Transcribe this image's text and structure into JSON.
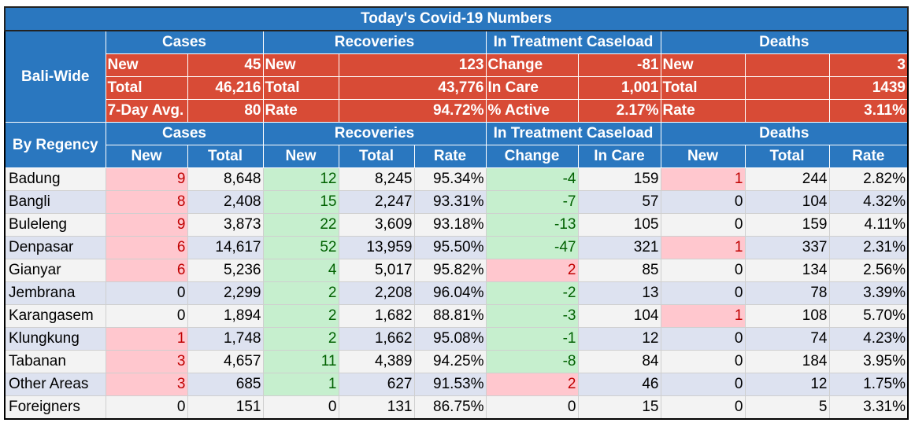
{
  "title": "Today's Covid-19 Numbers",
  "bali_wide": {
    "label": "Bali-Wide",
    "groups": [
      "Cases",
      "Recoveries",
      "In Treatment Caseload",
      "Deaths"
    ],
    "rows": [
      {
        "cases_label": "New",
        "cases_value": "45",
        "rec_label": "New",
        "rec_value": "123",
        "treat_label": "Change",
        "treat_value": "-81",
        "deaths_label": "New",
        "deaths_value": "3"
      },
      {
        "cases_label": "Total",
        "cases_value": "46,216",
        "rec_label": "Total",
        "rec_value": "43,776",
        "treat_label": "In Care",
        "treat_value": "1,001",
        "deaths_label": "Total",
        "deaths_value": "1439"
      },
      {
        "cases_label": "7-Day Avg.",
        "cases_value": "80",
        "rec_label": "Rate",
        "rec_value": "94.72%",
        "treat_label": "% Active",
        "treat_value": "2.17%",
        "deaths_label": "Rate",
        "deaths_value": "3.11%"
      }
    ]
  },
  "by_regency": {
    "label": "By Regency",
    "groups": [
      "Cases",
      "Recoveries",
      "In Treatment Caseload",
      "Deaths"
    ],
    "columns": [
      "New",
      "Total",
      "New",
      "Total",
      "Rate",
      "Change",
      "In Care",
      "New",
      "Total",
      "Rate"
    ],
    "rows": [
      [
        "Badung",
        "9",
        "8,648",
        "12",
        "8,245",
        "95.34%",
        "-4",
        "159",
        "1",
        "244",
        "2.82%"
      ],
      [
        "Bangli",
        "8",
        "2,408",
        "15",
        "2,247",
        "93.31%",
        "-7",
        "57",
        "0",
        "104",
        "4.32%"
      ],
      [
        "Buleleng",
        "9",
        "3,873",
        "22",
        "3,609",
        "93.18%",
        "-13",
        "105",
        "0",
        "159",
        "4.11%"
      ],
      [
        "Denpasar",
        "6",
        "14,617",
        "52",
        "13,959",
        "95.50%",
        "-47",
        "321",
        "1",
        "337",
        "2.31%"
      ],
      [
        "Gianyar",
        "6",
        "5,236",
        "4",
        "5,017",
        "95.82%",
        "2",
        "85",
        "0",
        "134",
        "2.56%"
      ],
      [
        "Jembrana",
        "0",
        "2,299",
        "2",
        "2,208",
        "96.04%",
        "-2",
        "13",
        "0",
        "78",
        "3.39%"
      ],
      [
        "Karangasem",
        "0",
        "1,894",
        "2",
        "1,682",
        "88.81%",
        "-3",
        "104",
        "1",
        "108",
        "5.70%"
      ],
      [
        "Klungkung",
        "1",
        "1,748",
        "2",
        "1,662",
        "95.08%",
        "-1",
        "12",
        "0",
        "74",
        "4.23%"
      ],
      [
        "Tabanan",
        "3",
        "4,657",
        "11",
        "4,389",
        "94.25%",
        "-8",
        "84",
        "0",
        "184",
        "3.95%"
      ],
      [
        "Other Areas",
        "3",
        "685",
        "1",
        "627",
        "91.53%",
        "2",
        "46",
        "0",
        "12",
        "1.75%"
      ],
      [
        "Foreigners",
        "0",
        "151",
        "0",
        "131",
        "86.75%",
        "0",
        "15",
        "0",
        "5",
        "3.31%"
      ]
    ]
  },
  "colors": {
    "header_blue": "#2a77bf",
    "summary_red": "#d84b36",
    "bad_fill": "#ffc7ce",
    "good_fill": "#c6efce",
    "row_alt": "#dde2f0"
  }
}
